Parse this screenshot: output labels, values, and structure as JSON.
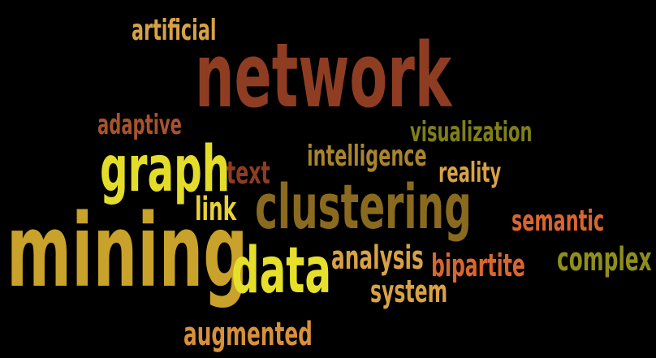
{
  "words": {
    "artificial": {
      "text": "artificial",
      "color": "#d8a244"
    },
    "network": {
      "text": "network",
      "color": "#8e3d22"
    },
    "adaptive": {
      "text": "adaptive",
      "color": "#a8532e"
    },
    "visualization": {
      "text": "visualization",
      "color": "#7f7f1a"
    },
    "graph": {
      "text": "graph",
      "color": "#e3dd2a"
    },
    "text": {
      "text": "text",
      "color": "#8e3d22"
    },
    "intelligence": {
      "text": "intelligence",
      "color": "#a8842e"
    },
    "reality": {
      "text": "reality",
      "color": "#d8a244"
    },
    "link": {
      "text": "link",
      "color": "#e8d234"
    },
    "clustering": {
      "text": "clustering",
      "color": "#8a6a1e"
    },
    "semantic": {
      "text": "semantic",
      "color": "#d9662e"
    },
    "mining": {
      "text": "mining",
      "color": "#c8a22a"
    },
    "data": {
      "text": "data",
      "color": "#e6e02a"
    },
    "analysis": {
      "text": "analysis",
      "color": "#d8a244"
    },
    "bipartite": {
      "text": "bipartite",
      "color": "#d9662e"
    },
    "complex": {
      "text": "complex",
      "color": "#8f8f1c"
    },
    "system": {
      "text": "system",
      "color": "#d8a244"
    },
    "augmented": {
      "text": "augmented",
      "color": "#d8903a"
    }
  }
}
